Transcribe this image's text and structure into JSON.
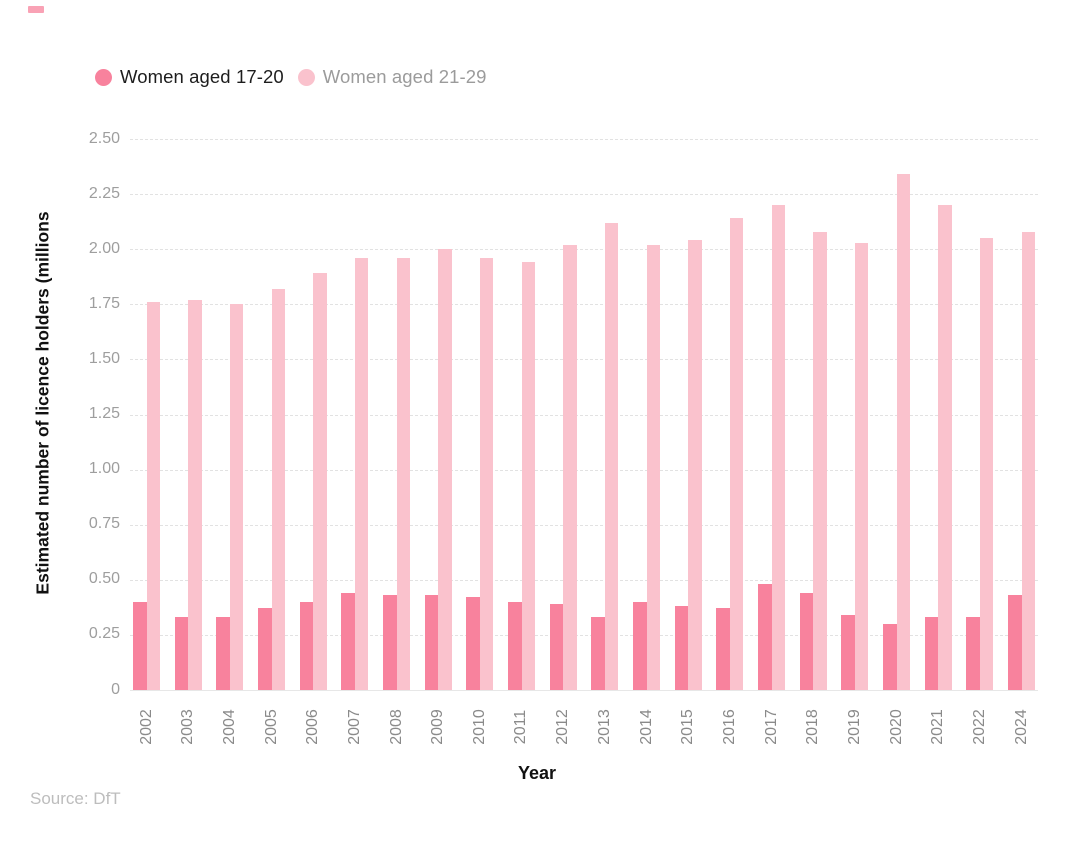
{
  "legend": {
    "items": [
      {
        "label": "Women aged 17-20",
        "color": "#F8829D",
        "text_color": "#1d1d1d"
      },
      {
        "label": "Women aged 21-29",
        "color": "#FAC2CD",
        "text_color": "#9b9b9b"
      }
    ]
  },
  "chart_data": {
    "type": "bar",
    "title": "",
    "xlabel": "Year",
    "ylabel": "Estimated number of licence holders (millions",
    "ylim": [
      0,
      2.5
    ],
    "ytick_step": 0.25,
    "yticks": [
      "2.50",
      "2.25",
      "2.00",
      "1.75",
      "1.50",
      "1.25",
      "1.00",
      "0.75",
      "0.50",
      "0.25",
      "0"
    ],
    "grid": "horizontal-dashed",
    "legend_position": "top-left",
    "categories": [
      "2002",
      "2003",
      "2004",
      "2005",
      "2006",
      "2007",
      "2008",
      "2009",
      "2010",
      "2011",
      "2012",
      "2013",
      "2014",
      "2015",
      "2016",
      "2017",
      "2018",
      "2019",
      "2020",
      "2021",
      "2022",
      "2024"
    ],
    "series": [
      {
        "name": "Women aged 17-20",
        "color": "#F8829D",
        "values": [
          0.4,
          0.33,
          0.33,
          0.37,
          0.4,
          0.44,
          0.43,
          0.43,
          0.42,
          0.4,
          0.39,
          0.33,
          0.4,
          0.38,
          0.37,
          0.48,
          0.44,
          0.34,
          0.3,
          0.33,
          0.33,
          0.43
        ]
      },
      {
        "name": "Women aged 21-29",
        "color": "#FAC2CD",
        "values": [
          1.76,
          1.77,
          1.75,
          1.82,
          1.89,
          1.96,
          1.96,
          2.0,
          1.96,
          1.94,
          2.02,
          2.12,
          2.02,
          2.04,
          2.14,
          2.2,
          2.08,
          2.03,
          2.34,
          2.2,
          2.05,
          2.08
        ]
      }
    ]
  },
  "footer": {
    "source": "Source: DfT"
  }
}
